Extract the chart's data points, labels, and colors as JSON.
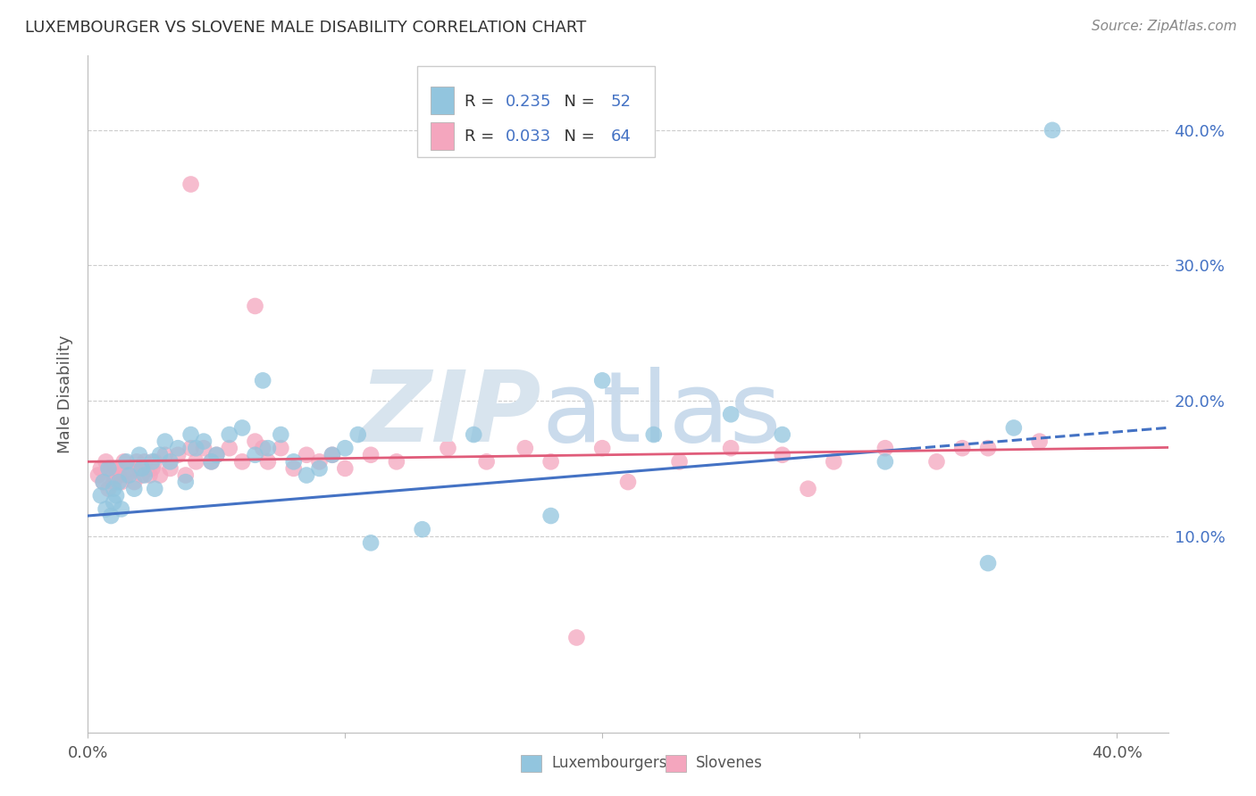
{
  "title": "LUXEMBOURGER VS SLOVENE MALE DISABILITY CORRELATION CHART",
  "source": "Source: ZipAtlas.com",
  "ylabel": "Male Disability",
  "xlim": [
    0.0,
    0.42
  ],
  "ylim": [
    -0.045,
    0.455
  ],
  "x_ticks": [
    0.0,
    0.1,
    0.2,
    0.3,
    0.4
  ],
  "x_tick_labels": [
    "0.0%",
    "",
    "",
    "",
    "40.0%"
  ],
  "y_tick_labels_right": [
    "10.0%",
    "20.0%",
    "30.0%",
    "40.0%"
  ],
  "y_tick_vals_right": [
    0.1,
    0.2,
    0.3,
    0.4
  ],
  "legend_labels": [
    "Luxembourgers",
    "Slovenes"
  ],
  "blue_color": "#92c5de",
  "pink_color": "#f4a6be",
  "blue_line_color": "#4472c4",
  "pink_line_color": "#e05c7a",
  "R_blue": "0.235",
  "N_blue": "52",
  "R_pink": "0.033",
  "N_pink": "64",
  "b_slope": 0.155,
  "b_intercept": 0.115,
  "p_slope": 0.025,
  "p_intercept": 0.155,
  "blue_x": [
    0.005,
    0.006,
    0.007,
    0.008,
    0.009,
    0.01,
    0.01,
    0.011,
    0.012,
    0.013,
    0.015,
    0.016,
    0.018,
    0.02,
    0.021,
    0.022,
    0.025,
    0.026,
    0.028,
    0.03,
    0.032,
    0.035,
    0.038,
    0.04,
    0.042,
    0.045,
    0.048,
    0.05,
    0.055,
    0.06,
    0.065,
    0.068,
    0.07,
    0.075,
    0.08,
    0.085,
    0.09,
    0.095,
    0.1,
    0.105,
    0.11,
    0.13,
    0.15,
    0.18,
    0.2,
    0.22,
    0.25,
    0.27,
    0.31,
    0.35,
    0.36,
    0.375
  ],
  "blue_y": [
    0.13,
    0.14,
    0.12,
    0.15,
    0.115,
    0.125,
    0.135,
    0.13,
    0.14,
    0.12,
    0.155,
    0.145,
    0.135,
    0.16,
    0.15,
    0.145,
    0.155,
    0.135,
    0.16,
    0.17,
    0.155,
    0.165,
    0.14,
    0.175,
    0.165,
    0.17,
    0.155,
    0.16,
    0.175,
    0.18,
    0.16,
    0.215,
    0.165,
    0.175,
    0.155,
    0.145,
    0.15,
    0.16,
    0.165,
    0.175,
    0.095,
    0.105,
    0.175,
    0.115,
    0.215,
    0.175,
    0.19,
    0.175,
    0.155,
    0.08,
    0.18,
    0.4
  ],
  "pink_x": [
    0.004,
    0.005,
    0.006,
    0.007,
    0.008,
    0.009,
    0.01,
    0.01,
    0.011,
    0.012,
    0.013,
    0.014,
    0.015,
    0.016,
    0.018,
    0.019,
    0.02,
    0.021,
    0.022,
    0.024,
    0.025,
    0.026,
    0.028,
    0.03,
    0.032,
    0.035,
    0.038,
    0.04,
    0.042,
    0.045,
    0.048,
    0.05,
    0.055,
    0.06,
    0.065,
    0.068,
    0.07,
    0.075,
    0.08,
    0.085,
    0.09,
    0.095,
    0.1,
    0.11,
    0.12,
    0.14,
    0.155,
    0.17,
    0.18,
    0.2,
    0.21,
    0.23,
    0.25,
    0.27,
    0.28,
    0.29,
    0.31,
    0.33,
    0.35,
    0.37,
    0.19,
    0.34,
    0.04,
    0.065
  ],
  "pink_y": [
    0.145,
    0.15,
    0.14,
    0.155,
    0.135,
    0.15,
    0.145,
    0.14,
    0.15,
    0.145,
    0.14,
    0.155,
    0.145,
    0.15,
    0.14,
    0.155,
    0.15,
    0.145,
    0.155,
    0.145,
    0.15,
    0.155,
    0.145,
    0.16,
    0.15,
    0.16,
    0.145,
    0.165,
    0.155,
    0.165,
    0.155,
    0.16,
    0.165,
    0.155,
    0.17,
    0.165,
    0.155,
    0.165,
    0.15,
    0.16,
    0.155,
    0.16,
    0.15,
    0.16,
    0.155,
    0.165,
    0.155,
    0.165,
    0.155,
    0.165,
    0.14,
    0.155,
    0.165,
    0.16,
    0.135,
    0.155,
    0.165,
    0.155,
    0.165,
    0.17,
    0.025,
    0.165,
    0.36,
    0.27
  ]
}
